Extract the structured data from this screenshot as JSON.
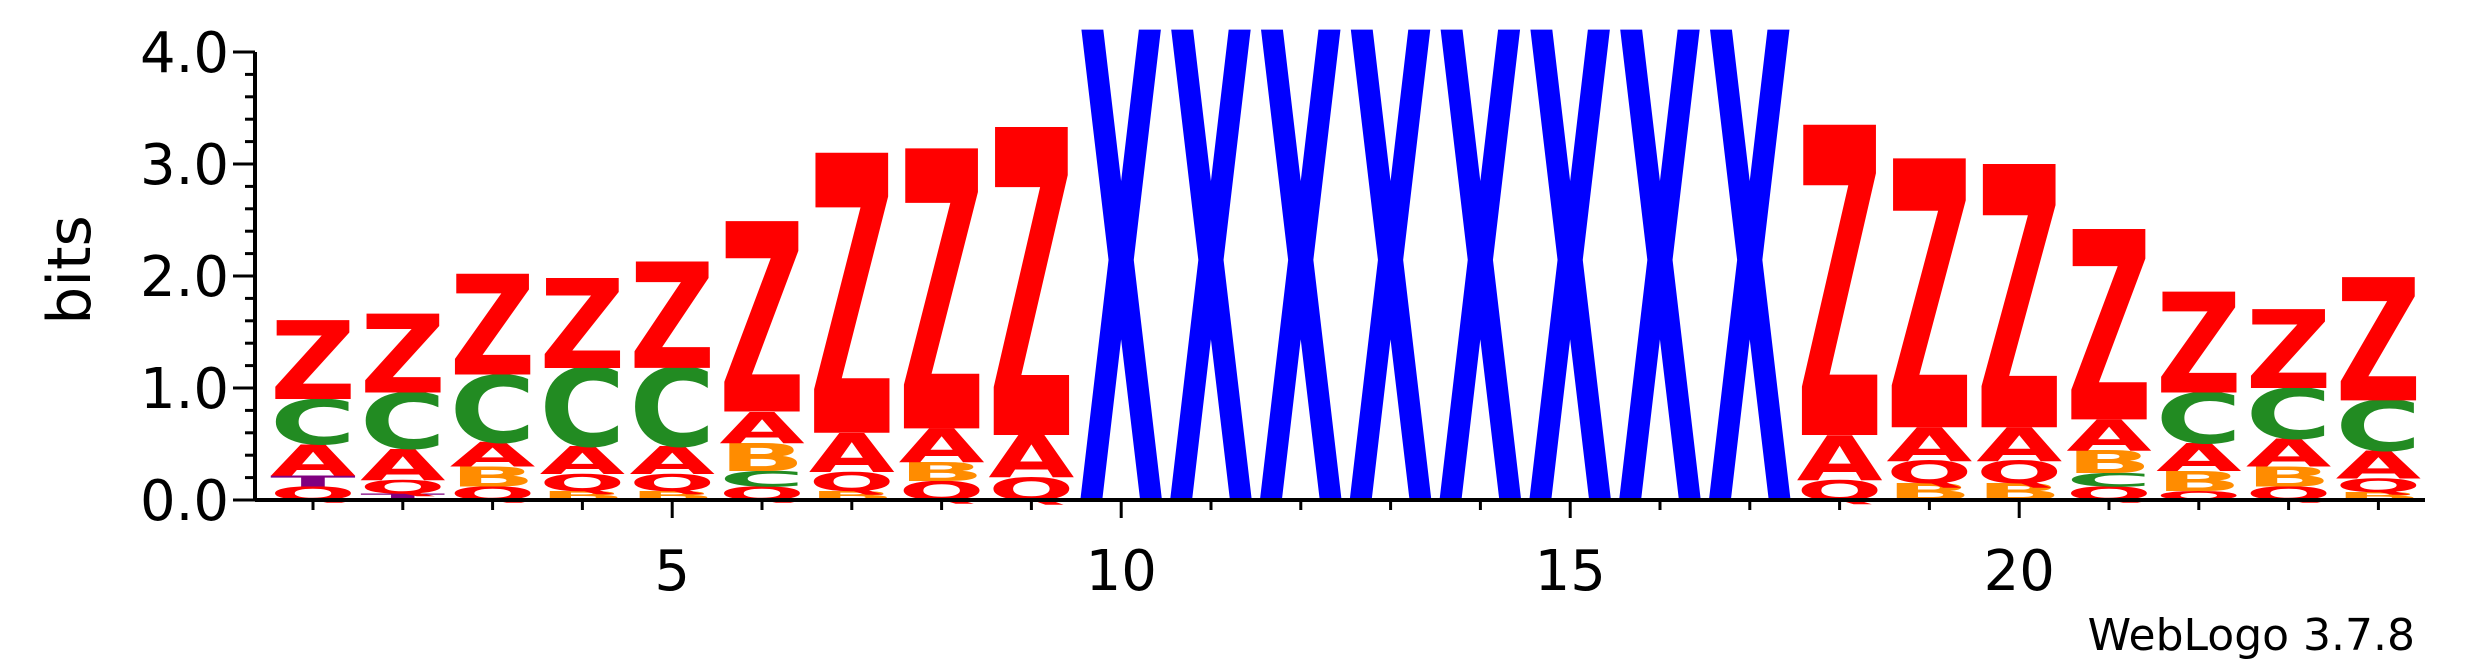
{
  "chart_data": {
    "type": "sequence-logo",
    "ylabel": "bits",
    "ylim": [
      0,
      4.0
    ],
    "y_ticks": [
      {
        "value": 0.0,
        "label": "0.0"
      },
      {
        "value": 1.0,
        "label": "1.0"
      },
      {
        "value": 2.0,
        "label": "2.0"
      },
      {
        "value": 3.0,
        "label": "3.0"
      },
      {
        "value": 4.0,
        "label": "4.0"
      }
    ],
    "x_ticks": [
      {
        "value": 5,
        "label": "5"
      },
      {
        "value": 10,
        "label": "10"
      },
      {
        "value": 15,
        "label": "15"
      },
      {
        "value": 20,
        "label": "20"
      }
    ],
    "colors": {
      "Z": "#ff0000",
      "A": "#ff0000",
      "Q": "#ff0000",
      "C": "#228b22",
      "B": "#ff8c00",
      "X": "#0000ff",
      "T": "#800080"
    },
    "positions": [
      {
        "pos": 1,
        "stack": [
          [
            "Q",
            0.12
          ],
          [
            "T",
            0.1
          ],
          [
            "A",
            0.28
          ],
          [
            "C",
            0.4
          ],
          [
            "Z",
            0.7
          ]
        ]
      },
      {
        "pos": 2,
        "stack": [
          [
            "T",
            0.06
          ],
          [
            "Q",
            0.12
          ],
          [
            "A",
            0.28
          ],
          [
            "C",
            0.5
          ],
          [
            "Z",
            0.7
          ]
        ]
      },
      {
        "pos": 3,
        "stack": [
          [
            "Q",
            0.12
          ],
          [
            "B",
            0.18
          ],
          [
            "A",
            0.22
          ],
          [
            "C",
            0.6
          ],
          [
            "Z",
            0.9
          ]
        ]
      },
      {
        "pos": 4,
        "stack": [
          [
            "B",
            0.08
          ],
          [
            "Q",
            0.15
          ],
          [
            "A",
            0.25
          ],
          [
            "C",
            0.7
          ],
          [
            "Z",
            0.8
          ]
        ]
      },
      {
        "pos": 5,
        "stack": [
          [
            "B",
            0.08
          ],
          [
            "Q",
            0.15
          ],
          [
            "A",
            0.25
          ],
          [
            "C",
            0.7
          ],
          [
            "Z",
            0.95
          ]
        ]
      },
      {
        "pos": 6,
        "stack": [
          [
            "Q",
            0.12
          ],
          [
            "C",
            0.14
          ],
          [
            "B",
            0.25
          ],
          [
            "A",
            0.28
          ],
          [
            "Z",
            1.7
          ]
        ]
      },
      {
        "pos": 7,
        "stack": [
          [
            "B",
            0.08
          ],
          [
            "Q",
            0.17
          ],
          [
            "A",
            0.35
          ],
          [
            "Z",
            2.5
          ]
        ]
      },
      {
        "pos": 8,
        "stack": [
          [
            "Q",
            0.17
          ],
          [
            "B",
            0.17
          ],
          [
            "A",
            0.3
          ],
          [
            "Z",
            2.5
          ]
        ]
      },
      {
        "pos": 9,
        "stack": [
          [
            "Q",
            0.2
          ],
          [
            "A",
            0.38
          ],
          [
            "Z",
            2.75
          ]
        ]
      },
      {
        "pos": 10,
        "stack": [
          [
            "X",
            4.2
          ]
        ]
      },
      {
        "pos": 11,
        "stack": [
          [
            "X",
            4.2
          ]
        ]
      },
      {
        "pos": 12,
        "stack": [
          [
            "X",
            4.2
          ]
        ]
      },
      {
        "pos": 13,
        "stack": [
          [
            "X",
            4.2
          ]
        ]
      },
      {
        "pos": 14,
        "stack": [
          [
            "X",
            4.2
          ]
        ]
      },
      {
        "pos": 15,
        "stack": [
          [
            "X",
            4.2
          ]
        ]
      },
      {
        "pos": 16,
        "stack": [
          [
            "X",
            4.2
          ]
        ]
      },
      {
        "pos": 17,
        "stack": [
          [
            "X",
            4.2
          ]
        ]
      },
      {
        "pos": 18,
        "stack": [
          [
            "Q",
            0.18
          ],
          [
            "A",
            0.4
          ],
          [
            "Z",
            2.77
          ]
        ]
      },
      {
        "pos": 19,
        "stack": [
          [
            "B",
            0.15
          ],
          [
            "Q",
            0.2
          ],
          [
            "A",
            0.3
          ],
          [
            "Z",
            2.4
          ]
        ]
      },
      {
        "pos": 20,
        "stack": [
          [
            "B",
            0.15
          ],
          [
            "Q",
            0.2
          ],
          [
            "A",
            0.3
          ],
          [
            "Z",
            2.35
          ]
        ]
      },
      {
        "pos": 21,
        "stack": [
          [
            "Q",
            0.12
          ],
          [
            "C",
            0.12
          ],
          [
            "B",
            0.2
          ],
          [
            "A",
            0.28
          ],
          [
            "Z",
            1.7
          ]
        ]
      },
      {
        "pos": 22,
        "stack": [
          [
            "Q",
            0.08
          ],
          [
            "B",
            0.18
          ],
          [
            "A",
            0.25
          ],
          [
            "C",
            0.45
          ],
          [
            "Z",
            0.9
          ]
        ]
      },
      {
        "pos": 23,
        "stack": [
          [
            "Q",
            0.12
          ],
          [
            "B",
            0.18
          ],
          [
            "A",
            0.25
          ],
          [
            "C",
            0.45
          ],
          [
            "Z",
            0.7
          ]
        ]
      },
      {
        "pos": 24,
        "stack": [
          [
            "B",
            0.07
          ],
          [
            "Q",
            0.12
          ],
          [
            "A",
            0.25
          ],
          [
            "C",
            0.45
          ],
          [
            "Z",
            1.1
          ]
        ]
      }
    ]
  },
  "footer": {
    "credit": "WebLogo 3.7.8"
  }
}
